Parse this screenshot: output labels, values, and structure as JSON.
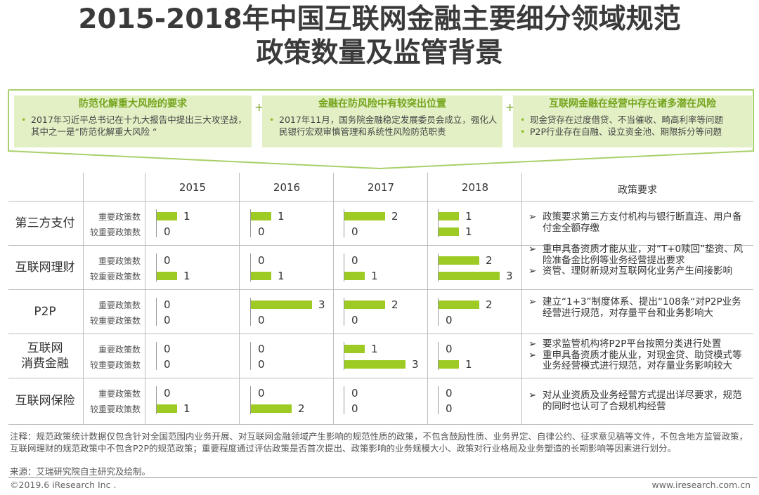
{
  "title": {
    "line1": "2015-2018年中国互联网金融主要细分领域规范",
    "line2": "政策数量及监管背景"
  },
  "background": [
    {
      "heading": "防范化解重大风险的要求",
      "bullets": [
        "2017年习近平总书记在十九大报告中提出三大攻坚战，其中之一是“防范化解重大风险 “"
      ]
    },
    {
      "heading": "金融在防风险中有较突出位置",
      "bullets": [
        "2017年11月，国务院金融稳定发展委员会成立，强化人民银行宏观审慎管理和系统性风险防范职责"
      ]
    },
    {
      "heading": "互联网金融在经营中存在诸多潜在风险",
      "bullets": [
        "现金贷存在过度借贷、不当催收、畸高利率等问题",
        "P2P行业存在自融、设立资金池、期限拆分等问题"
      ]
    }
  ],
  "plus_sign": "+",
  "bullet_symbol": "•",
  "requirement_marker": "➢",
  "column_header": "政策要求",
  "chart_data": {
    "type": "bar",
    "x": [
      "2015",
      "2016",
      "2017",
      "2018"
    ],
    "series_labels": [
      "重要政策数",
      "较重要政策数"
    ],
    "rows": [
      {
        "name": "第三方支付",
        "important": [
          1,
          1,
          2,
          1
        ],
        "secondary": [
          0,
          0,
          0,
          1
        ],
        "requirements": [
          "政策要求第三方支付机构与银行断直连、用户备付金全额存缴"
        ]
      },
      {
        "name": "互联网理财",
        "important": [
          0,
          0,
          0,
          2
        ],
        "secondary": [
          1,
          1,
          1,
          3
        ],
        "requirements": [
          "重申具备资质才能从业，对“T+0赎回”垫资、风险准备金比例等业务经营提出要求",
          "资管、理财新规对互联网化业务产生间接影响"
        ]
      },
      {
        "name": "P2P",
        "important": [
          0,
          3,
          2,
          2
        ],
        "secondary": [
          0,
          0,
          0,
          0
        ],
        "requirements": [
          "建立“1+3”制度体系、提出“108条“对P2P业务经营进行规范，对存量平台和业务影响大"
        ]
      },
      {
        "name": "互联网消费金融",
        "name_lines": [
          "互联网",
          "消费金融"
        ],
        "important": [
          0,
          0,
          1,
          0
        ],
        "secondary": [
          0,
          0,
          3,
          1
        ],
        "requirements": [
          "要求监管机构将P2P平台按照分类进行处置",
          "重申具备资质才能从业，对现金贷、助贷模式等业务经营模式进行规范，对存量业务影响较大"
        ]
      },
      {
        "name": "互联网保险",
        "important": [
          0,
          0,
          0,
          0
        ],
        "secondary": [
          1,
          2,
          0,
          0
        ],
        "requirements": [
          "对从业资质及业务经营方式提出详尽要求，规范的同时也认可了合规机构经营"
        ]
      }
    ]
  },
  "note": "注释：规范政策统计数据仅包含针对全国范围内业务开展、对互联网金融领域产生影响的规范性质的政策，不包含鼓励性质、业务界定、自律公约、征求意见稿等文件，不包含地方监管政策，互联网理财的规范政策中不包含P2P的规范政策；重要程度通过评估政策是否首次提出、政策影响的业务规模大小、政策对行业格局及业务塑造的长期影响等因素进行划分。",
  "source": "来源：艾瑞研究院自主研究及绘制。",
  "copyright": "©2019.6 iResearch Inc .",
  "website": "www.iresearch.com.cn",
  "colors": {
    "bar": "#9ecb23",
    "accent": "#75a51e",
    "box_bg": "#e3f0c5"
  }
}
